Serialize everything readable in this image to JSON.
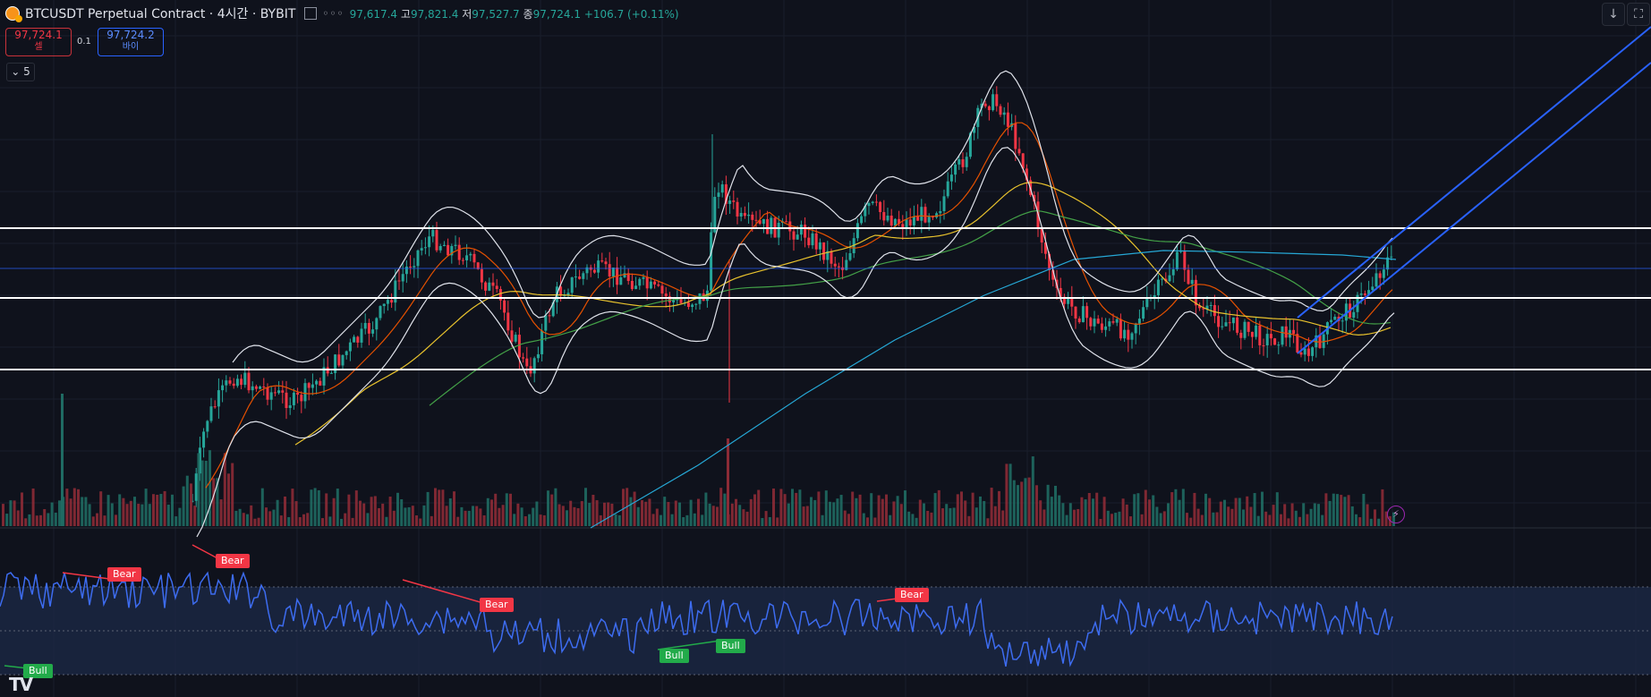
{
  "header": {
    "title": "BTCUSDT Perpetual Contract · 4시간 · BYBIT",
    "more": "◦◦◦",
    "ohlc": {
      "open": "97,617.4",
      "high_label": "고",
      "high": "97,821.4",
      "low_label": "저",
      "low": "97,527.7",
      "close_label": "종",
      "close": "97,724.1",
      "change": "+106.7 (+0.11%)"
    }
  },
  "trade": {
    "sell_price": "97,724.1",
    "sell_label": "셀",
    "spread": "0.1",
    "buy_price": "97,724.2",
    "buy_label": "바이"
  },
  "indicators_toggle": "5",
  "toolbar_right": {
    "scroll_icon": "↓",
    "fullscreen_icon": "⛶"
  },
  "divergence_tags": [
    {
      "type": "Bear",
      "label": "Bear"
    },
    {
      "type": "Bear",
      "label": "Bear"
    },
    {
      "type": "Bear",
      "label": "Bear"
    },
    {
      "type": "Bear",
      "label": "Bear"
    },
    {
      "type": "Bull",
      "label": "Bull"
    },
    {
      "type": "Bull",
      "label": "Bull"
    },
    {
      "type": "Bull",
      "label": "Bull"
    }
  ],
  "logo": "TV",
  "colors": {
    "background": "#0f121c",
    "up": "#26a69a",
    "down": "#f23645",
    "channel": "#2962ff",
    "rsi": "#3d6cf0",
    "bear": "#f23645",
    "bull": "#22ab4a"
  }
}
